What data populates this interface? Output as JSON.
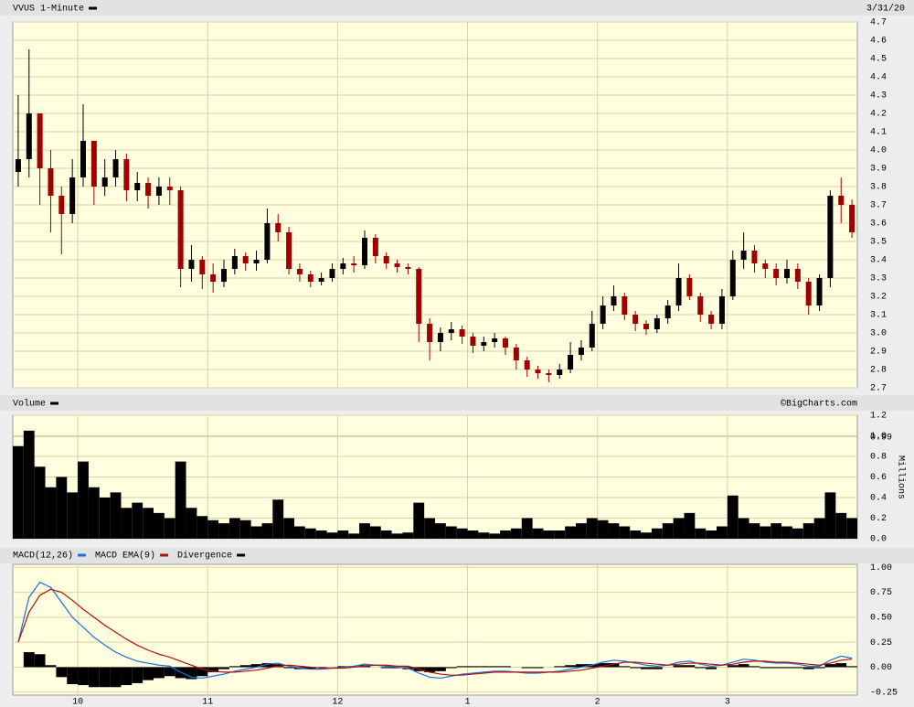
{
  "chart_data": [
    {
      "type": "candlestick",
      "title": "VVUS 1-Minute",
      "date": "3/31/20",
      "up_color": "#000000",
      "down_color": "#a00000",
      "x": [
        0,
        5,
        10,
        15,
        20,
        25,
        30,
        35,
        40,
        45,
        50,
        55,
        60,
        65,
        70,
        75,
        80,
        85,
        90,
        95,
        100,
        105,
        110,
        115,
        120,
        125,
        130,
        135,
        140,
        145,
        150,
        155,
        160,
        165,
        170,
        175,
        180,
        185,
        190,
        195,
        200,
        205,
        210,
        215,
        220,
        225,
        230,
        235,
        240,
        245,
        250,
        255,
        260,
        265,
        270,
        275,
        280,
        285,
        290,
        295,
        300,
        305,
        310,
        315,
        320,
        325,
        330,
        335,
        340,
        345,
        350,
        355,
        360,
        365,
        370,
        375,
        380,
        385
      ],
      "open": [
        3.88,
        3.95,
        4.2,
        3.9,
        3.75,
        3.65,
        3.85,
        4.05,
        3.8,
        3.85,
        3.95,
        3.78,
        3.82,
        3.75,
        3.8,
        3.78,
        3.35,
        3.4,
        3.32,
        3.28,
        3.35,
        3.42,
        3.38,
        3.4,
        3.6,
        3.55,
        3.35,
        3.32,
        3.28,
        3.3,
        3.35,
        3.38,
        3.37,
        3.52,
        3.42,
        3.38,
        3.36,
        3.35,
        3.05,
        2.95,
        3,
        3.02,
        2.98,
        2.93,
        2.95,
        2.97,
        2.92,
        2.85,
        2.8,
        2.78,
        2.77,
        2.8,
        2.88,
        2.92,
        3.05,
        3.15,
        3.2,
        3.1,
        3.05,
        3.02,
        3.08,
        3.15,
        3.3,
        3.2,
        3.1,
        3.05,
        3.2,
        3.4,
        3.45,
        3.38,
        3.35,
        3.3,
        3.35,
        3.28,
        3.15,
        3.3,
        3.75,
        3.7
      ],
      "high": [
        4.3,
        4.55,
        4.2,
        4,
        3.8,
        3.95,
        4.25,
        4.05,
        3.95,
        4,
        3.98,
        3.88,
        3.85,
        3.85,
        3.85,
        3.8,
        3.48,
        3.42,
        3.38,
        3.4,
        3.46,
        3.44,
        3.45,
        3.68,
        3.65,
        3.58,
        3.38,
        3.34,
        3.33,
        3.38,
        3.41,
        3.42,
        3.56,
        3.54,
        3.44,
        3.4,
        3.38,
        3.36,
        3.08,
        3.03,
        3.06,
        3.04,
        3,
        2.98,
        3,
        2.98,
        2.94,
        2.87,
        2.82,
        2.8,
        2.83,
        2.95,
        2.96,
        3.12,
        3.2,
        3.26,
        3.22,
        3.12,
        3.07,
        3.1,
        3.18,
        3.38,
        3.32,
        3.22,
        3.12,
        3.24,
        3.45,
        3.55,
        3.48,
        3.4,
        3.38,
        3.4,
        3.38,
        3.3,
        3.32,
        3.78,
        3.85,
        3.73
      ],
      "low": [
        3.8,
        3.85,
        3.7,
        3.55,
        3.43,
        3.6,
        3.8,
        3.7,
        3.75,
        3.8,
        3.72,
        3.72,
        3.68,
        3.7,
        3.7,
        3.25,
        3.28,
        3.24,
        3.22,
        3.25,
        3.32,
        3.34,
        3.34,
        3.38,
        3.5,
        3.32,
        3.28,
        3.25,
        3.26,
        3.28,
        3.32,
        3.33,
        3.35,
        3.38,
        3.35,
        3.33,
        3.32,
        2.95,
        2.85,
        2.9,
        2.96,
        2.94,
        2.89,
        2.9,
        2.92,
        2.88,
        2.8,
        2.76,
        2.75,
        2.73,
        2.75,
        2.78,
        2.85,
        2.9,
        3.02,
        3.12,
        3.07,
        3.01,
        2.99,
        3,
        3.05,
        3.12,
        3.18,
        3.06,
        3.02,
        3.02,
        3.18,
        3.35,
        3.33,
        3.3,
        3.26,
        3.27,
        3.24,
        3.1,
        3.12,
        3.25,
        3.6,
        3.52
      ],
      "close": [
        3.95,
        4.2,
        3.9,
        3.75,
        3.65,
        3.85,
        4.05,
        3.8,
        3.85,
        3.95,
        3.78,
        3.82,
        3.75,
        3.8,
        3.78,
        3.35,
        3.4,
        3.32,
        3.28,
        3.35,
        3.42,
        3.38,
        3.4,
        3.6,
        3.55,
        3.35,
        3.32,
        3.28,
        3.3,
        3.35,
        3.38,
        3.37,
        3.52,
        3.42,
        3.38,
        3.36,
        3.35,
        3.05,
        2.95,
        3,
        3.02,
        2.98,
        2.93,
        2.95,
        2.97,
        2.92,
        2.85,
        2.8,
        2.78,
        2.77,
        2.8,
        2.88,
        2.92,
        3.05,
        3.15,
        3.2,
        3.1,
        3.05,
        3.02,
        3.08,
        3.15,
        3.3,
        3.2,
        3.1,
        3.05,
        3.2,
        3.4,
        3.45,
        3.38,
        3.35,
        3.3,
        3.35,
        3.28,
        3.15,
        3.3,
        3.75,
        3.7,
        3.55
      ],
      "xlim": [
        0,
        390
      ],
      "xticks": [
        30,
        90,
        150,
        210,
        270,
        330
      ],
      "ylim": [
        2.7,
        4.7
      ],
      "yticks": [
        {
          "value": 2.7,
          "label": "2.7"
        },
        2.8,
        2.9,
        {
          "value": 3,
          "label": "3.0"
        },
        3.1,
        3.2,
        3.3,
        3.4,
        3.5,
        3.6,
        3.7,
        3.8,
        3.9,
        {
          "value": 4,
          "label": "4.0"
        },
        4.1,
        4.2,
        4.3,
        4.4,
        4.5,
        4.6,
        4.7
      ],
      "grid": true
    },
    {
      "type": "bar",
      "title": "Volume",
      "source": "©BigCharts.com",
      "ylabel": "Millions",
      "color": "#000000",
      "x": [
        0,
        5,
        10,
        15,
        20,
        25,
        30,
        35,
        40,
        45,
        50,
        55,
        60,
        65,
        70,
        75,
        80,
        85,
        90,
        95,
        100,
        105,
        110,
        115,
        120,
        125,
        130,
        135,
        140,
        145,
        150,
        155,
        160,
        165,
        170,
        175,
        180,
        185,
        190,
        195,
        200,
        205,
        210,
        215,
        220,
        225,
        230,
        235,
        240,
        245,
        250,
        255,
        260,
        265,
        270,
        275,
        280,
        285,
        290,
        295,
        300,
        305,
        310,
        315,
        320,
        325,
        330,
        335,
        340,
        345,
        350,
        355,
        360,
        365,
        370,
        375,
        380,
        385
      ],
      "values": [
        0.9,
        1.05,
        0.7,
        0.5,
        0.6,
        0.45,
        0.75,
        0.5,
        0.4,
        0.45,
        0.3,
        0.35,
        0.3,
        0.25,
        0.2,
        0.75,
        0.3,
        0.22,
        0.18,
        0.15,
        0.2,
        0.18,
        0.12,
        0.15,
        0.38,
        0.2,
        0.12,
        0.1,
        0.08,
        0.06,
        0.08,
        0.05,
        0.15,
        0.12,
        0.08,
        0.05,
        0.06,
        0.35,
        0.2,
        0.15,
        0.12,
        0.1,
        0.08,
        0.06,
        0.05,
        0.08,
        0.1,
        0.2,
        0.1,
        0.08,
        0.08,
        0.12,
        0.15,
        0.2,
        0.18,
        0.15,
        0.12,
        0.08,
        0.06,
        0.1,
        0.15,
        0.2,
        0.25,
        0.1,
        0.08,
        0.12,
        0.42,
        0.2,
        0.15,
        0.12,
        0.15,
        0.12,
        0.1,
        0.15,
        0.2,
        0.45,
        0.25,
        0.2
      ],
      "xlim": [
        0,
        390
      ],
      "xticks": [
        30,
        90,
        150,
        210,
        270,
        330
      ],
      "ylim": [
        0,
        1.2
      ],
      "yticks": [
        {
          "value": 0,
          "label": "0.0"
        },
        0.2,
        0.4,
        0.6,
        0.8,
        {
          "value": 1,
          "label": "1.0"
        },
        0.99,
        1.2
      ],
      "grid": true
    },
    {
      "type": "line",
      "x": [
        0,
        5,
        10,
        15,
        20,
        25,
        30,
        35,
        40,
        45,
        50,
        55,
        60,
        65,
        70,
        75,
        80,
        85,
        90,
        95,
        100,
        105,
        110,
        115,
        120,
        125,
        130,
        135,
        140,
        145,
        150,
        155,
        160,
        165,
        170,
        175,
        180,
        185,
        190,
        195,
        200,
        205,
        210,
        215,
        220,
        225,
        230,
        235,
        240,
        245,
        250,
        255,
        260,
        265,
        270,
        275,
        280,
        285,
        290,
        295,
        300,
        305,
        310,
        315,
        320,
        325,
        330,
        335,
        340,
        345,
        350,
        355,
        360,
        365,
        370,
        375,
        380,
        385
      ],
      "series": [
        {
          "name": "MACD(12,26)",
          "color": "#1e6fe0",
          "kind": "line",
          "values": [
            0.25,
            0.7,
            0.85,
            0.8,
            0.65,
            0.5,
            0.4,
            0.3,
            0.22,
            0.15,
            0.1,
            0.06,
            0.04,
            0.02,
            0.01,
            -0.05,
            -0.1,
            -0.11,
            -0.09,
            -0.07,
            -0.04,
            -0.02,
            0,
            0.03,
            0.04,
            0.01,
            -0.01,
            -0.02,
            -0.02,
            -0.01,
            0,
            0.01,
            0.03,
            0.02,
            0.01,
            0,
            -0.01,
            -0.06,
            -0.1,
            -0.11,
            -0.09,
            -0.07,
            -0.06,
            -0.05,
            -0.04,
            -0.04,
            -0.05,
            -0.06,
            -0.06,
            -0.05,
            -0.04,
            -0.02,
            0,
            0.02,
            0.05,
            0.07,
            0.06,
            0.04,
            0.02,
            0.01,
            0.02,
            0.05,
            0.06,
            0.03,
            0.01,
            0.02,
            0.05,
            0.08,
            0.07,
            0.05,
            0.04,
            0.04,
            0.03,
            0.01,
            0.01,
            0.07,
            0.11,
            0.09
          ]
        },
        {
          "name": "MACD EMA(9)",
          "color": "#b01010",
          "kind": "line",
          "values": [
            0.25,
            0.55,
            0.72,
            0.78,
            0.75,
            0.67,
            0.58,
            0.5,
            0.42,
            0.35,
            0.28,
            0.22,
            0.17,
            0.13,
            0.1,
            0.06,
            0.02,
            -0.02,
            -0.04,
            -0.05,
            -0.05,
            -0.04,
            -0.03,
            -0.01,
            0.01,
            0.02,
            0.01,
            0,
            -0.01,
            -0.01,
            -0.01,
            0,
            0.01,
            0.02,
            0.02,
            0.01,
            0.01,
            -0.02,
            -0.05,
            -0.07,
            -0.08,
            -0.08,
            -0.07,
            -0.06,
            -0.05,
            -0.05,
            -0.05,
            -0.05,
            -0.05,
            -0.05,
            -0.05,
            -0.04,
            -0.03,
            -0.01,
            0.01,
            0.03,
            0.05,
            0.05,
            0.04,
            0.03,
            0.02,
            0.03,
            0.04,
            0.04,
            0.03,
            0.02,
            0.03,
            0.05,
            0.06,
            0.06,
            0.05,
            0.05,
            0.04,
            0.03,
            0.02,
            0.04,
            0.07,
            0.08
          ]
        },
        {
          "name": "Divergence",
          "color": "#000000",
          "kind": "bar",
          "values": [
            0,
            0.15,
            0.13,
            0.02,
            -0.1,
            -0.17,
            -0.18,
            -0.2,
            -0.2,
            -0.2,
            -0.18,
            -0.16,
            -0.13,
            -0.11,
            -0.09,
            -0.11,
            -0.12,
            -0.09,
            -0.05,
            -0.02,
            0.01,
            0.02,
            0.03,
            0.04,
            0.03,
            -0.01,
            -0.02,
            -0.02,
            -0.01,
            0,
            0.01,
            0.01,
            0.02,
            0,
            -0.01,
            -0.01,
            -0.02,
            -0.04,
            -0.05,
            -0.04,
            -0.01,
            0.01,
            0.01,
            0.01,
            0.01,
            0.01,
            0,
            -0.01,
            -0.01,
            0,
            0.01,
            0.02,
            0.03,
            0.03,
            0.04,
            0.04,
            0.01,
            -0.01,
            -0.02,
            -0.02,
            0,
            0.02,
            0.02,
            -0.01,
            -0.02,
            0,
            0.02,
            0.03,
            0.01,
            -0.01,
            -0.01,
            -0.01,
            -0.01,
            -0.02,
            -0.01,
            0.03,
            0.04,
            0.01
          ]
        }
      ],
      "xlim": [
        0,
        390
      ],
      "xticks": [
        {
          "value": 30,
          "label": "10"
        },
        {
          "value": 90,
          "label": "11"
        },
        {
          "value": 150,
          "label": "12"
        },
        {
          "value": 210,
          "label": "1"
        },
        {
          "value": 270,
          "label": "2"
        },
        {
          "value": 330,
          "label": "3"
        }
      ],
      "ylim": [
        -0.28,
        1.03
      ],
      "yticks": [
        {
          "value": -0.25,
          "label": "-0.25"
        },
        {
          "value": 0,
          "label": "0.00"
        },
        {
          "value": 0.25,
          "label": "0.25"
        },
        {
          "value": 0.5,
          "label": "0.50"
        },
        {
          "value": 0.75,
          "label": "0.75"
        },
        {
          "value": 1,
          "label": "1.00"
        }
      ],
      "grid": true
    }
  ]
}
